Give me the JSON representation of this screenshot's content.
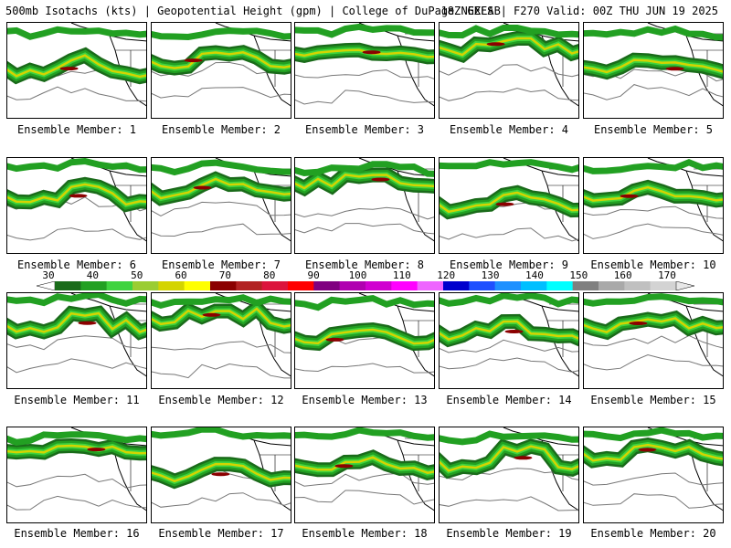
{
  "header": {
    "left": "500mb Isotachs (kts) | Geopotential Height (gpm) | College of DuPage NEXLAB",
    "right": "18Z GEFS | F270 Valid: 00Z THU JUN 19 2025"
  },
  "colorbar": {
    "ticks": [
      "30",
      "40",
      "50",
      "60",
      "70",
      "80",
      "90",
      "100",
      "110",
      "120",
      "130",
      "140",
      "150",
      "160",
      "170"
    ],
    "colors": [
      "#1a6b1a",
      "#22a022",
      "#3fd33f",
      "#9acd32",
      "#d4d400",
      "#ffff00",
      "#8b0000",
      "#b22222",
      "#dc143c",
      "#ff0000",
      "#800080",
      "#b000b0",
      "#d000d0",
      "#ff00ff",
      "#ee66ff",
      "#0000cd",
      "#1e50ff",
      "#1e90ff",
      "#00bfff",
      "#00ffff",
      "#808080",
      "#a9a9a9",
      "#c0c0c0",
      "#d3d3d3"
    ]
  },
  "members": [
    "Ensemble Member: 1",
    "Ensemble Member: 2",
    "Ensemble Member: 3",
    "Ensemble Member: 4",
    "Ensemble Member: 5",
    "Ensemble Member: 6",
    "Ensemble Member: 7",
    "Ensemble Member: 8",
    "Ensemble Member: 9",
    "Ensemble Member: 10",
    "Ensemble Member: 11",
    "Ensemble Member: 12",
    "Ensemble Member: 13",
    "Ensemble Member: 14",
    "Ensemble Member: 15",
    "Ensemble Member: 16",
    "Ensemble Member: 17",
    "Ensemble Member: 18",
    "Ensemble Member: 19",
    "Ensemble Member: 20"
  ]
}
